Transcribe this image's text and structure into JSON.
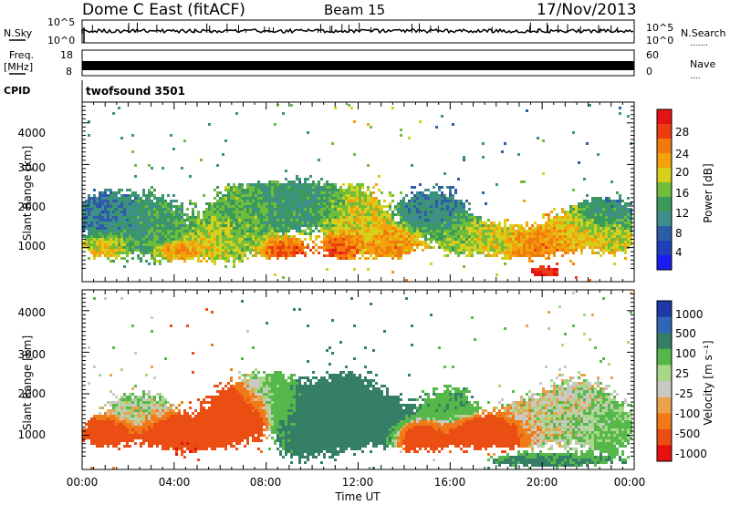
{
  "header": {
    "station": "Dome C East (fitACF)",
    "beam": "Beam 15",
    "date": "17/Nov/2013"
  },
  "nsky_panel": {
    "label": "N.Sky",
    "left_ticks": [
      "10^5",
      "10^0"
    ],
    "right_ticks": [
      "10^5",
      "10^0"
    ],
    "right_label": "N.Search",
    "right_marker": "......."
  },
  "freq_panel": {
    "label_line1": "Freq.",
    "label_line2": "[MHz]",
    "left_ticks": [
      "18",
      "8"
    ],
    "right_ticks": [
      "60",
      "0"
    ],
    "right_label": "Nave",
    "right_marker": "...."
  },
  "cpid_panel": {
    "label": "CPID",
    "program": "twofsound 3501"
  },
  "power_panel": {
    "ylabel": "Slant Range [km]",
    "yticks": [
      "4000",
      "3000",
      "2000",
      "1000"
    ],
    "colorbar_label": "Power [dB]",
    "colorbar_ticks": [
      "28",
      "24",
      "20",
      "16",
      "12",
      "8",
      "4"
    ],
    "colorbar_colors": [
      "#e51414",
      "#ec3d10",
      "#f07b0c",
      "#f4a10b",
      "#d6cf1b",
      "#6fbd3a",
      "#3a9a5e",
      "#3e8f8b",
      "#2e5da8",
      "#1e3fb8",
      "#1b1bf0"
    ]
  },
  "velocity_panel": {
    "ylabel": "Slant Range [km]",
    "yticks": [
      "4000",
      "3000",
      "2000",
      "1000"
    ],
    "colorbar_label": "Velocity [m s⁻¹]",
    "colorbar_ticks": [
      "1000",
      "500",
      "100",
      "25",
      "-25",
      "-100",
      "-500",
      "-1000"
    ],
    "colorbar_colors": [
      "#1d3aa8",
      "#2f66b5",
      "#357f66",
      "#56b84a",
      "#a8d78a",
      "#c9c9c4",
      "#eba24d",
      "#f07a17",
      "#ea4e12",
      "#e51010"
    ]
  },
  "time_axis": {
    "label": "Time UT",
    "ticks": [
      "00:00",
      "04:00",
      "08:00",
      "12:00",
      "16:00",
      "20:00",
      "00:00"
    ]
  },
  "chart_data": {
    "type": "heatmap",
    "x_range_hours": [
      0,
      24
    ],
    "y_range_km": [
      180,
      4500
    ],
    "power_scale_db": [
      0,
      30
    ],
    "velocity_scale_ms": [
      -1000,
      1000
    ],
    "power_blobs": [
      {
        "t": 1.0,
        "r": 1050,
        "dt": 0.8,
        "dr": 250,
        "v": 20
      },
      {
        "t": 1.0,
        "r": 1800,
        "dt": 1.2,
        "dr": 500,
        "v": 8
      },
      {
        "t": 3.0,
        "r": 1500,
        "dt": 1.5,
        "dr": 700,
        "v": 12
      },
      {
        "t": 4.2,
        "r": 950,
        "dt": 0.8,
        "dr": 200,
        "v": 24
      },
      {
        "t": 5.8,
        "r": 1200,
        "dt": 1.0,
        "dr": 450,
        "v": 18
      },
      {
        "t": 7.0,
        "r": 1700,
        "dt": 1.4,
        "dr": 800,
        "v": 14
      },
      {
        "t": 8.8,
        "r": 1000,
        "dt": 0.9,
        "dr": 220,
        "v": 26
      },
      {
        "t": 9.5,
        "r": 2100,
        "dt": 1.6,
        "dr": 600,
        "v": 11
      },
      {
        "t": 11.3,
        "r": 1050,
        "dt": 0.7,
        "dr": 260,
        "v": 27
      },
      {
        "t": 12.0,
        "r": 1700,
        "dt": 1.2,
        "dr": 700,
        "v": 18
      },
      {
        "t": 13.5,
        "r": 1150,
        "dt": 1.1,
        "dr": 350,
        "v": 22
      },
      {
        "t": 15.3,
        "r": 1900,
        "dt": 1.3,
        "dr": 500,
        "v": 9
      },
      {
        "t": 16.5,
        "r": 1300,
        "dt": 1.0,
        "dr": 400,
        "v": 16
      },
      {
        "t": 18.2,
        "r": 1200,
        "dt": 1.1,
        "dr": 350,
        "v": 18
      },
      {
        "t": 19.8,
        "r": 1100,
        "dt": 1.0,
        "dr": 300,
        "v": 23
      },
      {
        "t": 20.2,
        "r": 420,
        "dt": 0.6,
        "dr": 120,
        "v": 28
      },
      {
        "t": 21.5,
        "r": 1400,
        "dt": 1.4,
        "dr": 450,
        "v": 20
      },
      {
        "t": 22.8,
        "r": 1800,
        "dt": 1.2,
        "dr": 400,
        "v": 10
      },
      {
        "t": 23.3,
        "r": 1250,
        "dt": 0.8,
        "dr": 350,
        "v": 17
      }
    ],
    "velocity_blobs": [
      {
        "t": 1.0,
        "r": 1050,
        "dt": 1.0,
        "dr": 280,
        "v": -300
      },
      {
        "t": 2.5,
        "r": 1500,
        "dt": 1.5,
        "dr": 500,
        "v": 15
      },
      {
        "t": 4.5,
        "r": 1000,
        "dt": 1.3,
        "dr": 350,
        "v": -500
      },
      {
        "t": 6.5,
        "r": 1400,
        "dt": 1.2,
        "dr": 600,
        "v": -300
      },
      {
        "t": 8.0,
        "r": 2000,
        "dt": 1.3,
        "dr": 500,
        "v": 40
      },
      {
        "t": 9.8,
        "r": 1200,
        "dt": 1.4,
        "dr": 700,
        "v": 120
      },
      {
        "t": 11.5,
        "r": 1700,
        "dt": 1.5,
        "dr": 800,
        "v": 300
      },
      {
        "t": 13.2,
        "r": 1300,
        "dt": 1.2,
        "dr": 500,
        "v": 150
      },
      {
        "t": 14.8,
        "r": 1000,
        "dt": 1.0,
        "dr": 300,
        "v": -300
      },
      {
        "t": 16.0,
        "r": 1500,
        "dt": 1.2,
        "dr": 600,
        "v": 80
      },
      {
        "t": 17.5,
        "r": 1050,
        "dt": 1.2,
        "dr": 300,
        "v": -500
      },
      {
        "t": 19.5,
        "r": 1300,
        "dt": 1.4,
        "dr": 500,
        "v": 0
      },
      {
        "t": 21.5,
        "r": 1600,
        "dt": 1.6,
        "dr": 700,
        "v": 10
      },
      {
        "t": 23.0,
        "r": 1200,
        "dt": 1.0,
        "dr": 500,
        "v": 50
      },
      {
        "t": 20.5,
        "r": 400,
        "dt": 2.5,
        "dr": 150,
        "v": 120
      }
    ]
  }
}
